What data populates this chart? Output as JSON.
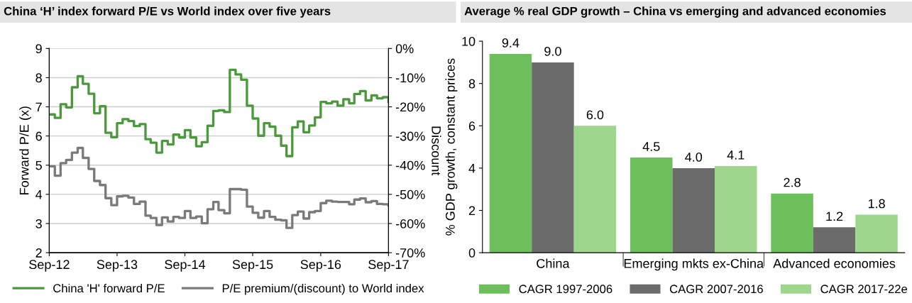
{
  "chart_data": [
    {
      "type": "step",
      "title": "China ‘H’ index forward P/E vs World index over five years",
      "ylabel": "Forward P/E (x)",
      "y2label": "Discount",
      "x": [
        "2012-09",
        "2012-10",
        "2012-11",
        "2012-12",
        "2013-01",
        "2013-02",
        "2013-03",
        "2013-04",
        "2013-05",
        "2013-06",
        "2013-07",
        "2013-08",
        "2013-09",
        "2013-10",
        "2013-11",
        "2013-12",
        "2014-01",
        "2014-02",
        "2014-03",
        "2014-04",
        "2014-05",
        "2014-06",
        "2014-07",
        "2014-08",
        "2014-09",
        "2014-10",
        "2014-11",
        "2014-12",
        "2015-01",
        "2015-02",
        "2015-03",
        "2015-04",
        "2015-05",
        "2015-06",
        "2015-07",
        "2015-08",
        "2015-09",
        "2015-10",
        "2015-11",
        "2015-12",
        "2016-01",
        "2016-02",
        "2016-03",
        "2016-04",
        "2016-05",
        "2016-06",
        "2016-07",
        "2016-08",
        "2016-09",
        "2016-10",
        "2016-11",
        "2016-12",
        "2017-01",
        "2017-02",
        "2017-03",
        "2017-04",
        "2017-05",
        "2017-06",
        "2017-07",
        "2017-08",
        "2017-09"
      ],
      "series": [
        {
          "name": "China 'H' forward P/E",
          "color": "#4a9a3c",
          "values": [
            6.74,
            6.62,
            7.09,
            6.98,
            7.67,
            8.05,
            7.79,
            7.45,
            6.78,
            7.02,
            6.11,
            5.96,
            6.44,
            6.58,
            6.51,
            6.34,
            6.41,
            5.89,
            5.77,
            5.43,
            5.83,
            5.71,
            6.05,
            5.95,
            6.2,
            5.95,
            5.65,
            5.79,
            6.35,
            6.86,
            6.88,
            6.82,
            8.27,
            8.11,
            7.93,
            7.04,
            6.6,
            6.01,
            6.44,
            6.32,
            6.01,
            5.67,
            5.31,
            6.3,
            6.5,
            6.13,
            6.36,
            6.64,
            7.17,
            7.12,
            7.18,
            7.04,
            7.26,
            7.12,
            7.44,
            7.54,
            7.22,
            7.39,
            7.29,
            7.33,
            7.17
          ]
        },
        {
          "name": "P/E premium/(discount) to World index",
          "color": "#7a7a7a",
          "axis": "y2",
          "values": [
            -40.4,
            -43.6,
            -39.3,
            -38.2,
            -35.7,
            -34.1,
            -37.5,
            -41.3,
            -45.4,
            -46.8,
            -51.3,
            -53.7,
            -50.7,
            -50.5,
            -51.1,
            -53.3,
            -52.5,
            -57.3,
            -58.1,
            -60.5,
            -57.9,
            -59.3,
            -57.7,
            -58.1,
            -55.7,
            -58.1,
            -57.6,
            -59.9,
            -55.1,
            -52.6,
            -55.4,
            -56.5,
            -48.2,
            -48.2,
            -48.4,
            -54.2,
            -56.3,
            -58.0,
            -55.7,
            -57.7,
            -58.7,
            -58.9,
            -61.5,
            -57.1,
            -55.9,
            -58.3,
            -56.1,
            -55.7,
            -53.0,
            -52.2,
            -52.5,
            -52.6,
            -52.6,
            -53.4,
            -51.8,
            -51.4,
            -52.7,
            -52.3,
            -53.3,
            -53.4,
            -53.8
          ]
        }
      ],
      "xlim": [
        "2012-09",
        "2017-09"
      ],
      "xticks": [
        {
          "value": "2012-09",
          "label": "Sep-12"
        },
        {
          "value": "2013-09",
          "label": "Sep-13"
        },
        {
          "value": "2014-09",
          "label": "Sep-14"
        },
        {
          "value": "2015-09",
          "label": "Sep-15"
        },
        {
          "value": "2016-09",
          "label": "Sep-16"
        },
        {
          "value": "2017-09",
          "label": "Sep-17"
        }
      ],
      "ylim": [
        2,
        9
      ],
      "yticks": [
        2,
        3,
        4,
        5,
        6,
        7,
        8,
        9
      ],
      "y2lim": [
        -70,
        0
      ],
      "y2ticks": [
        {
          "value": -70,
          "label": "-70%"
        },
        {
          "value": -60,
          "label": "-60%"
        },
        {
          "value": -50,
          "label": "-50%"
        },
        {
          "value": -40,
          "label": "-40%"
        },
        {
          "value": -30,
          "label": "-30%"
        },
        {
          "value": -20,
          "label": "-20%"
        },
        {
          "value": -10,
          "label": "-10%"
        },
        {
          "value": 0,
          "label": "0%"
        }
      ],
      "grid": "y",
      "legend": "bottom",
      "line_style": "solid"
    },
    {
      "type": "bar",
      "title": "Average % real GDP growth – China vs emerging and advanced economies",
      "ylabel": "% GDP growth, constant prices",
      "categories": [
        "China",
        "Emerging mkts ex-China",
        "Advanced economies"
      ],
      "series": [
        {
          "name": "CAGR 1997-2006",
          "color": "#6dbf5c",
          "values": [
            9.4,
            4.5,
            2.8
          ],
          "value_labels": [
            "9.4",
            "4.5",
            "2.8"
          ]
        },
        {
          "name": "CAGR 2007-2016",
          "color": "#6b6b6b",
          "values": [
            9.0,
            4.0,
            1.2
          ],
          "value_labels": [
            "9.0",
            "4.0",
            "1.2"
          ]
        },
        {
          "name": "CAGR 2017-22e",
          "color": "#9fd68d",
          "values": [
            6.0,
            4.1,
            1.8
          ],
          "value_labels": [
            "6.0",
            "4.1",
            "1.8"
          ]
        }
      ],
      "ylim": [
        0,
        10
      ],
      "yticks": [
        0,
        2,
        4,
        6,
        8,
        10
      ],
      "legend": "bottom"
    }
  ]
}
